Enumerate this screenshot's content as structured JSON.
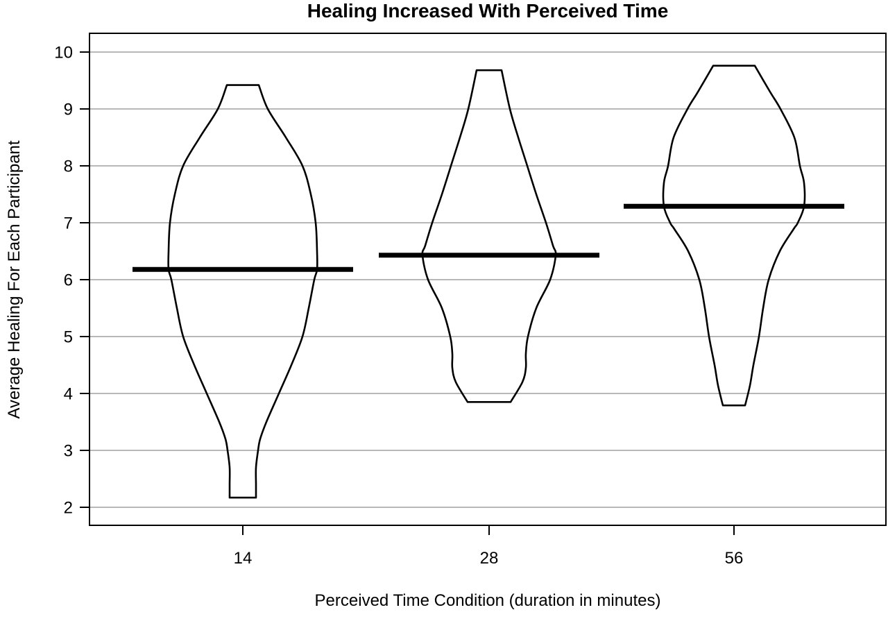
{
  "figure": {
    "background": "#ffffff"
  },
  "chart_data": {
    "type": "violin",
    "title": "Healing Increased With Perceived Time",
    "xlabel": "Perceived Time Condition (duration in minutes)",
    "ylabel": "Average Healing For Each Participant",
    "categories": [
      "14",
      "28",
      "56"
    ],
    "y_ticks": [
      2,
      3,
      4,
      5,
      6,
      7,
      8,
      9,
      10
    ],
    "ylim_display": [
      1.68,
      10.33
    ],
    "grid": "horizontal-gray-lines",
    "legend": "none",
    "profile_units": "each profile point = [y_value, half_width_px]",
    "series": [
      {
        "name": "14",
        "mean": 6.18,
        "range": [
          2.17,
          9.42
        ],
        "profile": [
          [
            9.42,
            23
          ],
          [
            9.0,
            36
          ],
          [
            8.5,
            62
          ],
          [
            8.0,
            86
          ],
          [
            7.5,
            98
          ],
          [
            7.0,
            105
          ],
          [
            6.5,
            107
          ],
          [
            6.18,
            107
          ],
          [
            6.0,
            103
          ],
          [
            5.5,
            95
          ],
          [
            5.0,
            86
          ],
          [
            4.5,
            70
          ],
          [
            4.0,
            52
          ],
          [
            3.5,
            34
          ],
          [
            3.2,
            25
          ],
          [
            3.0,
            22
          ],
          [
            2.7,
            19
          ],
          [
            2.4,
            19
          ],
          [
            2.17,
            19
          ]
        ]
      },
      {
        "name": "28",
        "mean": 6.43,
        "range": [
          3.85,
          9.68
        ],
        "profile": [
          [
            9.68,
            18
          ],
          [
            9.0,
            30
          ],
          [
            8.5,
            42
          ],
          [
            8.0,
            55
          ],
          [
            7.5,
            68
          ],
          [
            7.0,
            82
          ],
          [
            6.6,
            92
          ],
          [
            6.43,
            96
          ],
          [
            6.0,
            88
          ],
          [
            5.5,
            68
          ],
          [
            5.0,
            56
          ],
          [
            4.7,
            53
          ],
          [
            4.45,
            53
          ],
          [
            4.2,
            48
          ],
          [
            3.85,
            31
          ]
        ]
      },
      {
        "name": "56",
        "mean": 7.29,
        "range": [
          3.79,
          9.76
        ],
        "profile": [
          [
            9.76,
            30
          ],
          [
            9.3,
            52
          ],
          [
            9.0,
            67
          ],
          [
            8.5,
            87
          ],
          [
            8.0,
            95
          ],
          [
            7.7,
            101
          ],
          [
            7.29,
            101
          ],
          [
            7.0,
            92
          ],
          [
            6.89,
            86
          ],
          [
            6.5,
            66
          ],
          [
            6.0,
            50
          ],
          [
            5.5,
            42
          ],
          [
            5.0,
            36
          ],
          [
            4.5,
            28
          ],
          [
            4.14,
            23
          ],
          [
            3.79,
            16
          ]
        ]
      }
    ],
    "colors": {
      "violin_stroke": "#000000",
      "mean_line": "#000000",
      "grid_line": "#a0a0a0",
      "box_border": "#000000",
      "background": "#ffffff"
    }
  }
}
